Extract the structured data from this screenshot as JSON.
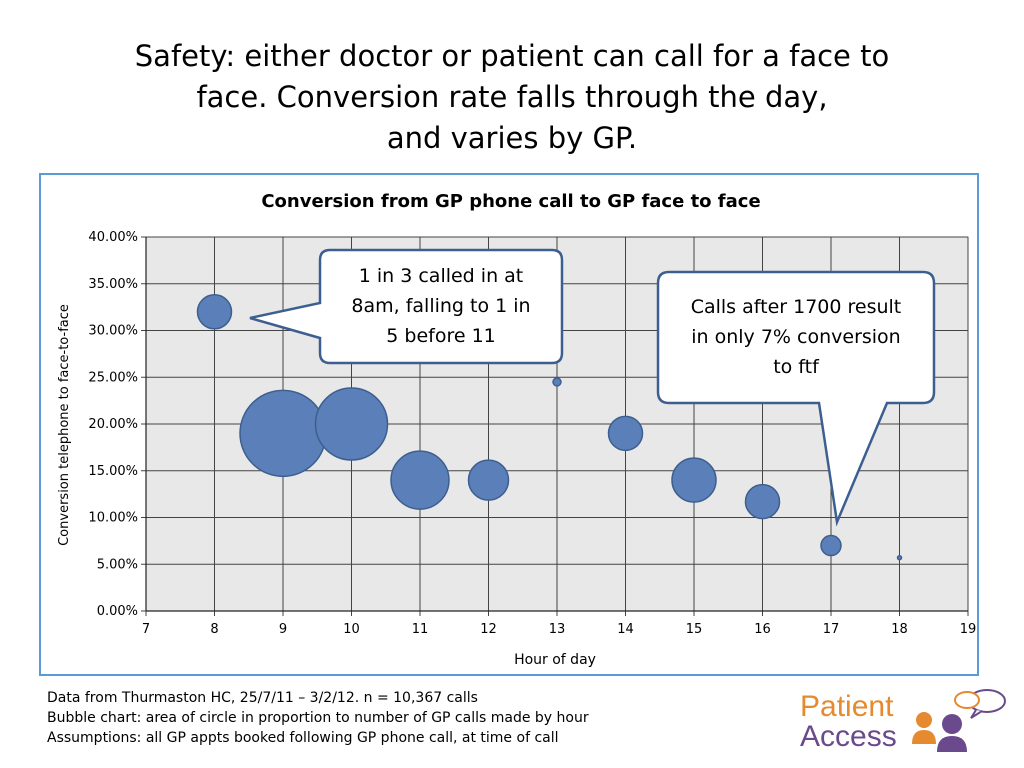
{
  "slide": {
    "title_lines": [
      "Safety:  either doctor or patient can call for a face to",
      "face. Conversion rate falls through the day,",
      "and varies by GP."
    ]
  },
  "chart_data": {
    "type": "scatter",
    "title": "Conversion from GP phone call to GP face to face",
    "xlabel": "Hour of day",
    "ylabel": "Conversion telephone to face-to-face",
    "xlim": [
      7,
      19
    ],
    "ylim": [
      0,
      0.4
    ],
    "x_ticks": [
      "7",
      "8",
      "9",
      "10",
      "11",
      "12",
      "13",
      "14",
      "15",
      "16",
      "17",
      "18",
      "19"
    ],
    "y_ticks": [
      "0.00%",
      "5.00%",
      "10.00%",
      "15.00%",
      "20.00%",
      "25.00%",
      "30.00%",
      "35.00%",
      "40.00%"
    ],
    "grid": true,
    "bubble_color": "#5b7fb8",
    "plot_background": "#e8e8e8",
    "points": [
      {
        "x": 8,
        "y": 0.32,
        "size": 17
      },
      {
        "x": 9,
        "y": 0.19,
        "size": 43
      },
      {
        "x": 10,
        "y": 0.2,
        "size": 36
      },
      {
        "x": 11,
        "y": 0.14,
        "size": 29
      },
      {
        "x": 12,
        "y": 0.14,
        "size": 20
      },
      {
        "x": 13,
        "y": 0.245,
        "size": 4
      },
      {
        "x": 14,
        "y": 0.19,
        "size": 17
      },
      {
        "x": 15,
        "y": 0.14,
        "size": 22
      },
      {
        "x": 16,
        "y": 0.117,
        "size": 17
      },
      {
        "x": 17,
        "y": 0.07,
        "size": 10
      },
      {
        "x": 18,
        "y": 0.057,
        "size": 2
      }
    ],
    "callouts": [
      {
        "lines": [
          "1 in 3 called in at",
          "8am, falling to 1 in",
          "5 before 11"
        ]
      },
      {
        "lines": [
          "Calls after 1700 result",
          "in only 7% conversion",
          "to ftf"
        ]
      }
    ]
  },
  "footer": {
    "lines": [
      "Data from Thurmaston HC, 25/7/11 – 3/2/12.  n = 10,367 calls",
      "Bubble chart:  area of circle in proportion to number of GP calls made by hour",
      "Assumptions:  all GP appts booked following GP phone call, at time of call"
    ]
  },
  "logo": {
    "line1": "Patient",
    "line2": "Access",
    "colors": {
      "orange": "#e58a2f",
      "purple": "#6a4a8c"
    }
  }
}
